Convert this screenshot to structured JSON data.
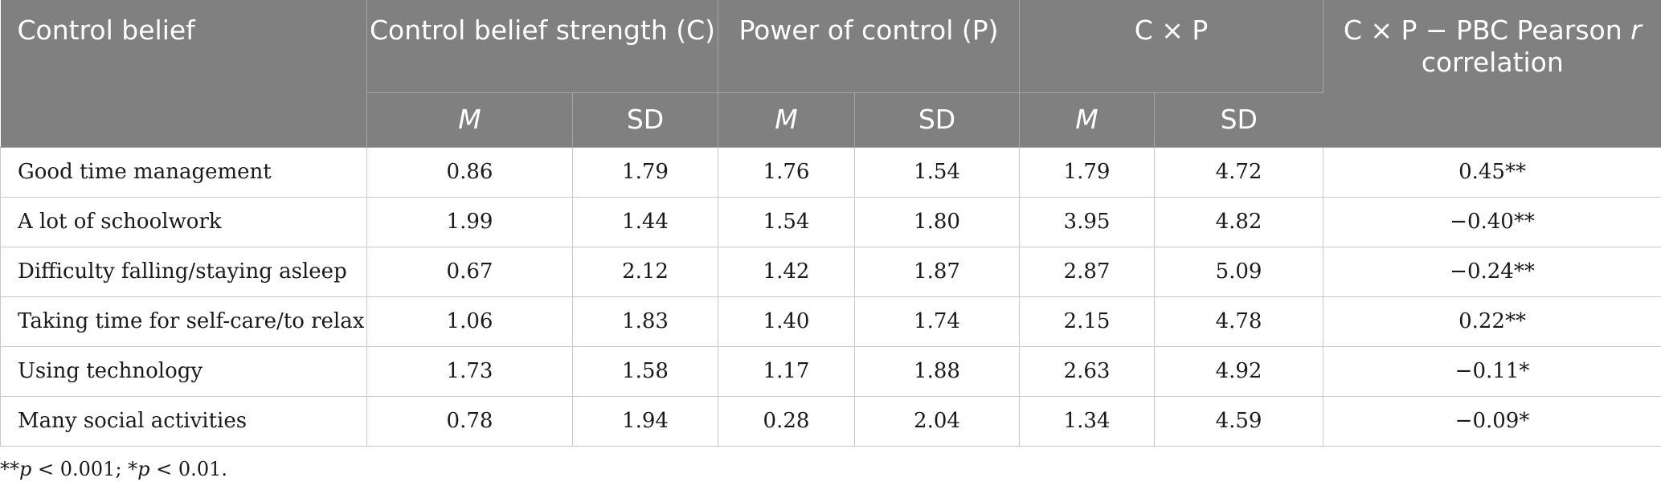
{
  "header": {
    "col_control_belief": "Control belief",
    "col_strength": "Control belief strength (C)",
    "col_power": "Power of control (P)",
    "col_cxp": "C × P",
    "col_corr_prefix": "C × P − PBC Pearson ",
    "col_corr_r": "r",
    "col_corr_suffix": " correlation",
    "sub_m": "M",
    "sub_sd": "SD"
  },
  "rows": [
    {
      "belief": "Good time management",
      "c_m": "0.86",
      "c_sd": "1.79",
      "p_m": "1.76",
      "p_sd": "1.54",
      "cxp_m": "1.79",
      "cxp_sd": "4.72",
      "r": "0.45**"
    },
    {
      "belief": "A lot of schoolwork",
      "c_m": "1.99",
      "c_sd": "1.44",
      "p_m": "1.54",
      "p_sd": "1.80",
      "cxp_m": "3.95",
      "cxp_sd": "4.82",
      "r": "−0.40**"
    },
    {
      "belief": "Difficulty falling/staying asleep",
      "c_m": "0.67",
      "c_sd": "2.12",
      "p_m": "1.42",
      "p_sd": "1.87",
      "cxp_m": "2.87",
      "cxp_sd": "5.09",
      "r": "−0.24**"
    },
    {
      "belief": "Taking time for self-care/to relax",
      "c_m": "1.06",
      "c_sd": "1.83",
      "p_m": "1.40",
      "p_sd": "1.74",
      "cxp_m": "2.15",
      "cxp_sd": "4.78",
      "r": "0.22**"
    },
    {
      "belief": "Using technology",
      "c_m": "1.73",
      "c_sd": "1.58",
      "p_m": "1.17",
      "p_sd": "1.88",
      "cxp_m": "2.63",
      "cxp_sd": "4.92",
      "r": "−0.11*"
    },
    {
      "belief": "Many social activities",
      "c_m": "0.78",
      "c_sd": "1.94",
      "p_m": "0.28",
      "p_sd": "2.04",
      "cxp_m": "1.34",
      "cxp_sd": "4.59",
      "r": "−0.09*"
    }
  ],
  "footnote": {
    "part1": "**",
    "p1": "p",
    "part2": " < 0.001; *",
    "p2": "p",
    "part3": " < 0.01."
  }
}
